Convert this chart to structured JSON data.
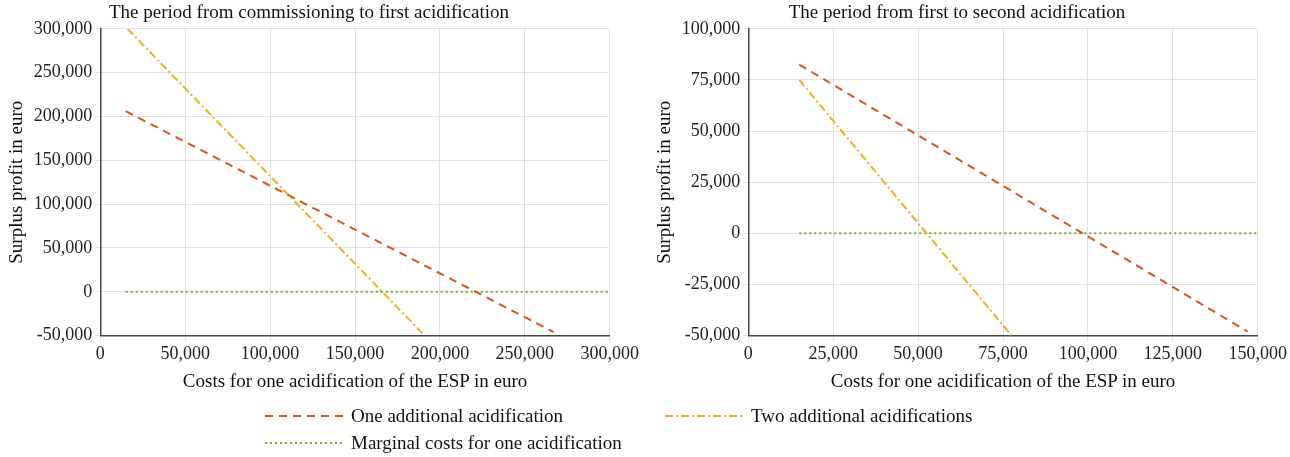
{
  "chart_data": [
    {
      "type": "line",
      "title": "The period from commissioning to first acidification",
      "xlabel": "Costs for one acidification of the ESP in euro",
      "ylabel": "Surplus profit in euro",
      "series": [
        {
          "name": "One additional acidification",
          "color": "#d95319",
          "line_style": "dashed",
          "x": [
            15000,
            267000
          ],
          "values": [
            206000,
            -46000
          ]
        },
        {
          "name": "Two additional acidifications",
          "color": "#edb120",
          "line_style": "dashdot",
          "x": [
            16000,
            191000
          ],
          "values": [
            300000,
            -50000
          ]
        },
        {
          "name": "Marginal costs for one acidification",
          "color": "#77ac30",
          "line_style": "dotted",
          "x": [
            15000,
            300000
          ],
          "values": [
            0,
            0
          ]
        }
      ],
      "xlim": [
        0,
        300000
      ],
      "ylim": [
        -50000,
        300000
      ],
      "xticks": [
        0,
        {
          "value": 50000,
          "label": "50,000"
        },
        {
          "value": 100000,
          "label": "100,000"
        },
        {
          "value": 150000,
          "label": "150,000"
        },
        {
          "value": 200000,
          "label": "200,000"
        },
        {
          "value": 250000,
          "label": "250,000"
        },
        {
          "value": 300000,
          "label": "300,000"
        }
      ],
      "yticks": [
        {
          "value": -50000,
          "label": "-50,000"
        },
        0,
        {
          "value": 50000,
          "label": "50,000"
        },
        {
          "value": 100000,
          "label": "100,000"
        },
        {
          "value": 150000,
          "label": "150,000"
        },
        {
          "value": 200000,
          "label": "200,000"
        },
        {
          "value": 250000,
          "label": "250,000"
        },
        {
          "value": 300000,
          "label": "300,000"
        }
      ],
      "grid": true,
      "marker": "none",
      "legend": "bottom"
    },
    {
      "type": "line",
      "title": "The period from first to second acidification",
      "xlabel": "Costs for one acidification of the ESP in euro",
      "ylabel": "Surplus profit in euro",
      "series": [
        {
          "color": "#d95319",
          "line_style": "dashed",
          "x": [
            15000,
            147000
          ],
          "values": [
            82500,
            -48000
          ]
        },
        {
          "color": "#edb120",
          "line_style": "dashdot",
          "x": [
            15000,
            77500
          ],
          "values": [
            75000,
            -50000
          ]
        },
        {
          "color": "#77ac30",
          "line_style": "dotted",
          "x": [
            15000,
            150000
          ],
          "values": [
            0,
            0
          ]
        }
      ],
      "xlim": [
        0,
        150000
      ],
      "ylim": [
        -50000,
        100000
      ],
      "xticks": [
        0,
        {
          "value": 25000,
          "label": "25,000"
        },
        {
          "value": 50000,
          "label": "50,000"
        },
        {
          "value": 75000,
          "label": "75,000"
        },
        {
          "value": 100000,
          "label": "100,000"
        },
        {
          "value": 125000,
          "label": "125,000"
        },
        {
          "value": 150000,
          "label": "150,000"
        }
      ],
      "yticks": [
        {
          "value": -50000,
          "label": "-50,000"
        },
        {
          "value": -25000,
          "label": "-25,000"
        },
        0,
        {
          "value": 25000,
          "label": "25,000"
        },
        {
          "value": 50000,
          "label": "50,000"
        },
        {
          "value": 75000,
          "label": "75,000"
        },
        {
          "value": 100000,
          "label": "100,000"
        }
      ],
      "grid": true,
      "marker": "none"
    }
  ]
}
